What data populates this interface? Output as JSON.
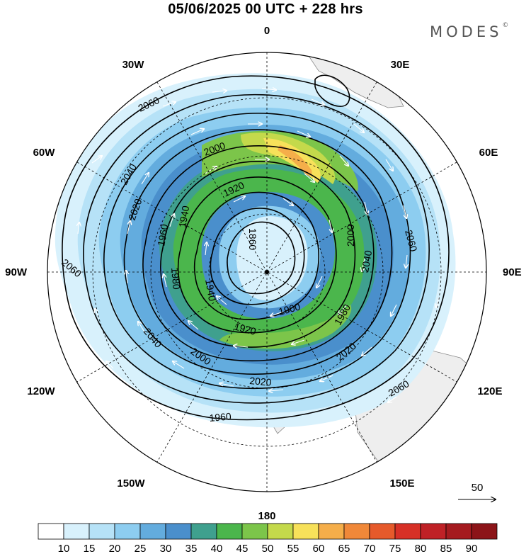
{
  "title": "05/06/2025  00 UTC  + 228 hrs",
  "brand": "MODES",
  "brand_mark": "©",
  "meridian_labels": [
    {
      "text": "0",
      "lon": 0
    },
    {
      "text": "30E",
      "lon": 30
    },
    {
      "text": "60E",
      "lon": 60
    },
    {
      "text": "90E",
      "lon": 90
    },
    {
      "text": "120E",
      "lon": 120
    },
    {
      "text": "150E",
      "lon": 150
    },
    {
      "text": "180",
      "lon": 180
    },
    {
      "text": "150W",
      "lon": -150
    },
    {
      "text": "120W",
      "lon": -120
    },
    {
      "text": "90W",
      "lon": -90
    },
    {
      "text": "60W",
      "lon": -60
    },
    {
      "text": "30W",
      "lon": -30
    }
  ],
  "contour_labels": [
    "2060",
    "2040",
    "2000",
    "1980",
    "1920",
    "1940",
    "1860",
    "2020",
    "1960",
    "1900",
    "1980",
    "1940",
    "1920",
    "2000",
    "2020",
    "2040",
    "2060",
    "2060",
    "2040",
    "2060",
    "2020",
    "2000",
    "1960"
  ],
  "vector_reference": {
    "label": "50"
  },
  "colorbar": {
    "labels": [
      "10",
      "15",
      "20",
      "25",
      "30",
      "35",
      "40",
      "45",
      "50",
      "55",
      "60",
      "65",
      "70",
      "75",
      "80",
      "85",
      "90"
    ],
    "colors": [
      "#ffffff",
      "#d8f1fc",
      "#b6e2f7",
      "#8dcdf0",
      "#63acde",
      "#4a8fcc",
      "#3fa08e",
      "#4bb64c",
      "#7cc54a",
      "#c4d94b",
      "#f7e15a",
      "#f5ae4a",
      "#f08839",
      "#e65a2b",
      "#d73027",
      "#bf2126",
      "#a51b1f",
      "#8c1418"
    ]
  }
}
